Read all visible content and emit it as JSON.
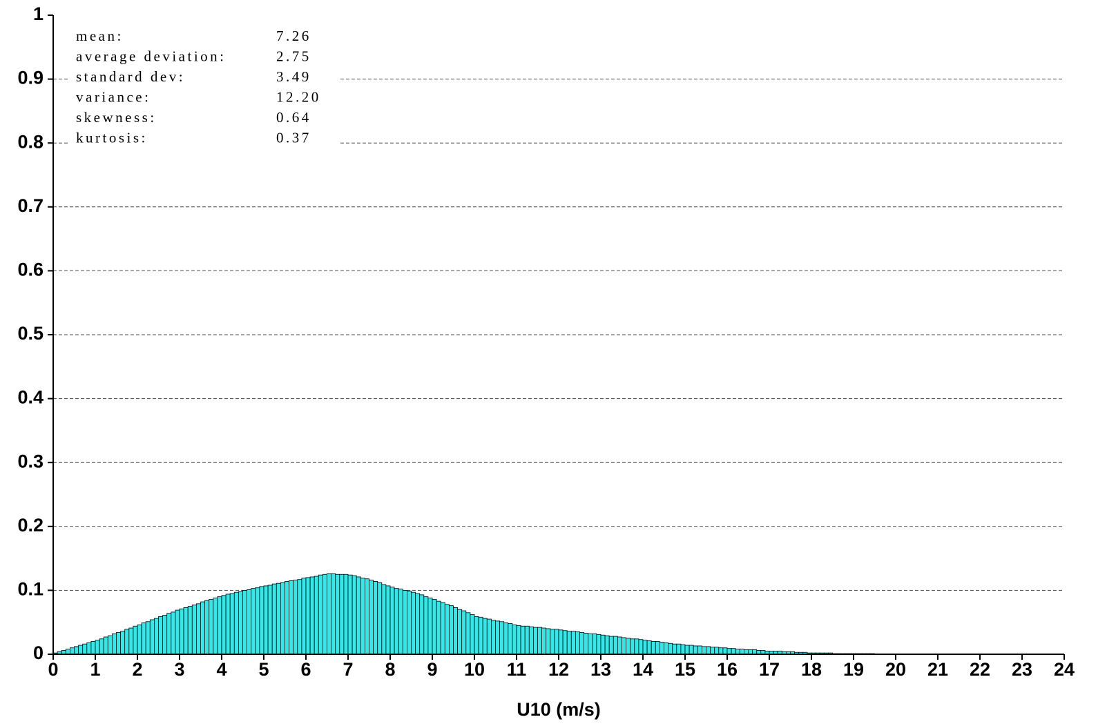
{
  "chart_data": {
    "type": "histogram",
    "xlabel": "U10 (m/s)",
    "stats": [
      {
        "label": "mean:",
        "value": "7.26"
      },
      {
        "label": "average deviation:",
        "value": "2.75"
      },
      {
        "label": "standard dev:",
        "value": "3.49"
      },
      {
        "label": "variance:",
        "value": "12.20"
      },
      {
        "label": "skewness:",
        "value": "0.64"
      },
      {
        "label": "kurtosis:",
        "value": "0.37"
      }
    ],
    "bins": [
      0,
      0.1,
      0.2,
      0.3,
      0.4,
      0.5,
      0.6,
      0.7,
      0.8,
      0.9,
      1,
      1.1,
      1.2,
      1.3,
      1.4,
      1.5,
      1.6,
      1.7,
      1.8,
      1.9,
      2,
      2.1,
      2.2,
      2.3,
      2.4,
      2.5,
      2.6,
      2.7,
      2.8,
      2.9,
      3,
      3.1,
      3.2,
      3.3,
      3.4,
      3.5,
      3.6,
      3.7,
      3.8,
      3.9,
      4,
      4.1,
      4.2,
      4.3,
      4.4,
      4.5,
      4.6,
      4.7,
      4.8,
      4.9,
      5,
      5.1,
      5.2,
      5.3,
      5.4,
      5.5,
      5.6,
      5.7,
      5.8,
      5.9,
      6,
      6.1,
      6.2,
      6.3,
      6.4,
      6.5,
      6.6,
      6.7,
      6.8,
      6.9,
      7,
      7.1,
      7.2,
      7.3,
      7.4,
      7.5,
      7.6,
      7.7,
      7.8,
      7.9,
      8,
      8.1,
      8.2,
      8.3,
      8.4,
      8.5,
      8.6,
      8.7,
      8.8,
      8.9,
      9,
      9.1,
      9.2,
      9.3,
      9.4,
      9.5,
      9.6,
      9.7,
      9.8,
      9.9,
      10,
      10.1,
      10.2,
      10.3,
      10.4,
      10.5,
      10.6,
      10.7,
      10.8,
      10.9,
      11,
      11.1,
      11.2,
      11.3,
      11.4,
      11.5,
      11.6,
      11.7,
      11.8,
      11.9,
      12,
      12.1,
      12.2,
      12.3,
      12.4,
      12.5,
      12.6,
      12.7,
      12.8,
      12.9,
      13,
      13.1,
      13.2,
      13.3,
      13.4,
      13.5,
      13.6,
      13.7,
      13.8,
      13.9,
      14,
      14.1,
      14.2,
      14.3,
      14.4,
      14.5,
      14.6,
      14.7,
      14.8,
      14.9,
      15,
      15.1,
      15.2,
      15.3,
      15.4,
      15.5,
      15.6,
      15.7,
      15.8,
      15.9,
      16,
      16.1,
      16.2,
      16.3,
      16.4,
      16.5,
      16.6,
      16.7,
      16.8,
      16.9,
      17,
      17.1,
      17.2,
      17.3,
      17.4,
      17.5,
      17.6,
      17.7,
      17.8,
      17.9,
      18,
      18.1,
      18.2,
      18.3,
      18.4,
      18.5,
      18.6,
      18.7,
      18.8,
      18.9,
      19,
      19.1,
      19.2,
      19.3,
      19.4,
      19.5,
      19.6,
      19.7,
      19.8,
      19.9,
      20,
      20.1,
      20.2,
      20.3,
      20.4,
      20.5,
      20.6,
      20.7,
      20.8,
      20.9,
      21,
      21.1,
      21.2,
      21.3,
      21.4,
      21.5,
      21.6,
      21.7,
      21.8,
      21.9,
      22,
      22.1,
      22.2,
      22.3,
      22.4,
      22.5,
      22.6,
      22.7,
      22.8,
      22.9,
      23,
      23.1,
      23.2,
      23.3,
      23.4,
      23.5,
      23.6,
      23.7,
      23.8,
      23.9,
      24
    ],
    "values": [
      0.002,
      0.004,
      0.006,
      0.008,
      0.01,
      0.012,
      0.014,
      0.016,
      0.018,
      0.02,
      0.022,
      0.024,
      0.027,
      0.029,
      0.032,
      0.034,
      0.036,
      0.039,
      0.041,
      0.044,
      0.046,
      0.049,
      0.051,
      0.054,
      0.056,
      0.059,
      0.061,
      0.064,
      0.066,
      0.069,
      0.071,
      0.073,
      0.075,
      0.077,
      0.079,
      0.082,
      0.084,
      0.086,
      0.088,
      0.09,
      0.092,
      0.094,
      0.095,
      0.097,
      0.098,
      0.1,
      0.101,
      0.103,
      0.104,
      0.106,
      0.107,
      0.108,
      0.11,
      0.111,
      0.112,
      0.114,
      0.115,
      0.116,
      0.117,
      0.119,
      0.12,
      0.121,
      0.122,
      0.124,
      0.125,
      0.126,
      0.126,
      0.125,
      0.125,
      0.125,
      0.124,
      0.123,
      0.121,
      0.119,
      0.118,
      0.116,
      0.114,
      0.112,
      0.109,
      0.107,
      0.105,
      0.103,
      0.102,
      0.1,
      0.099,
      0.097,
      0.095,
      0.093,
      0.09,
      0.088,
      0.086,
      0.083,
      0.081,
      0.078,
      0.076,
      0.073,
      0.07,
      0.068,
      0.065,
      0.062,
      0.059,
      0.058,
      0.056,
      0.055,
      0.053,
      0.052,
      0.051,
      0.049,
      0.048,
      0.046,
      0.045,
      0.044,
      0.044,
      0.043,
      0.042,
      0.042,
      0.041,
      0.04,
      0.039,
      0.039,
      0.038,
      0.037,
      0.036,
      0.036,
      0.035,
      0.034,
      0.033,
      0.032,
      0.032,
      0.031,
      0.03,
      0.029,
      0.028,
      0.028,
      0.027,
      0.026,
      0.025,
      0.024,
      0.024,
      0.023,
      0.022,
      0.021,
      0.02,
      0.02,
      0.019,
      0.018,
      0.017,
      0.016,
      0.016,
      0.015,
      0.014,
      0.014,
      0.013,
      0.013,
      0.012,
      0.012,
      0.011,
      0.011,
      0.01,
      0.01,
      0.009,
      0.009,
      0.008,
      0.008,
      0.007,
      0.007,
      0.007,
      0.006,
      0.006,
      0.005,
      0.005,
      0.005,
      0.005,
      0.004,
      0.004,
      0.004,
      0.003,
      0.003,
      0.003,
      0.002,
      0.002,
      0.002,
      0.002,
      0.002,
      0.002,
      0.001,
      0.001,
      0.001,
      0.001,
      0.001,
      0.001,
      0.001,
      0.001,
      0.001,
      0.001,
      0.0005,
      0.0005,
      0.0005,
      0.0005,
      0.0005,
      0,
      0,
      0,
      0,
      0,
      0,
      0,
      0,
      0,
      0,
      0,
      0,
      0,
      0,
      0,
      0,
      0,
      0,
      0,
      0,
      0,
      0,
      0,
      0,
      0,
      0,
      0,
      0,
      0,
      0,
      0,
      0,
      0,
      0,
      0,
      0,
      0,
      0,
      0,
      0
    ],
    "color": "#33e8e8",
    "xlim": [
      0,
      24
    ],
    "xticks": [
      0,
      1,
      2,
      3,
      4,
      5,
      6,
      7,
      8,
      9,
      10,
      11,
      12,
      13,
      14,
      15,
      16,
      17,
      18,
      19,
      20,
      21,
      22,
      23,
      24
    ],
    "ylim": [
      0,
      1
    ],
    "yticks": [
      0,
      0.1,
      0.2,
      0.3,
      0.4,
      0.5,
      0.6,
      0.7,
      0.8,
      0.9,
      1
    ],
    "grid": true
  }
}
